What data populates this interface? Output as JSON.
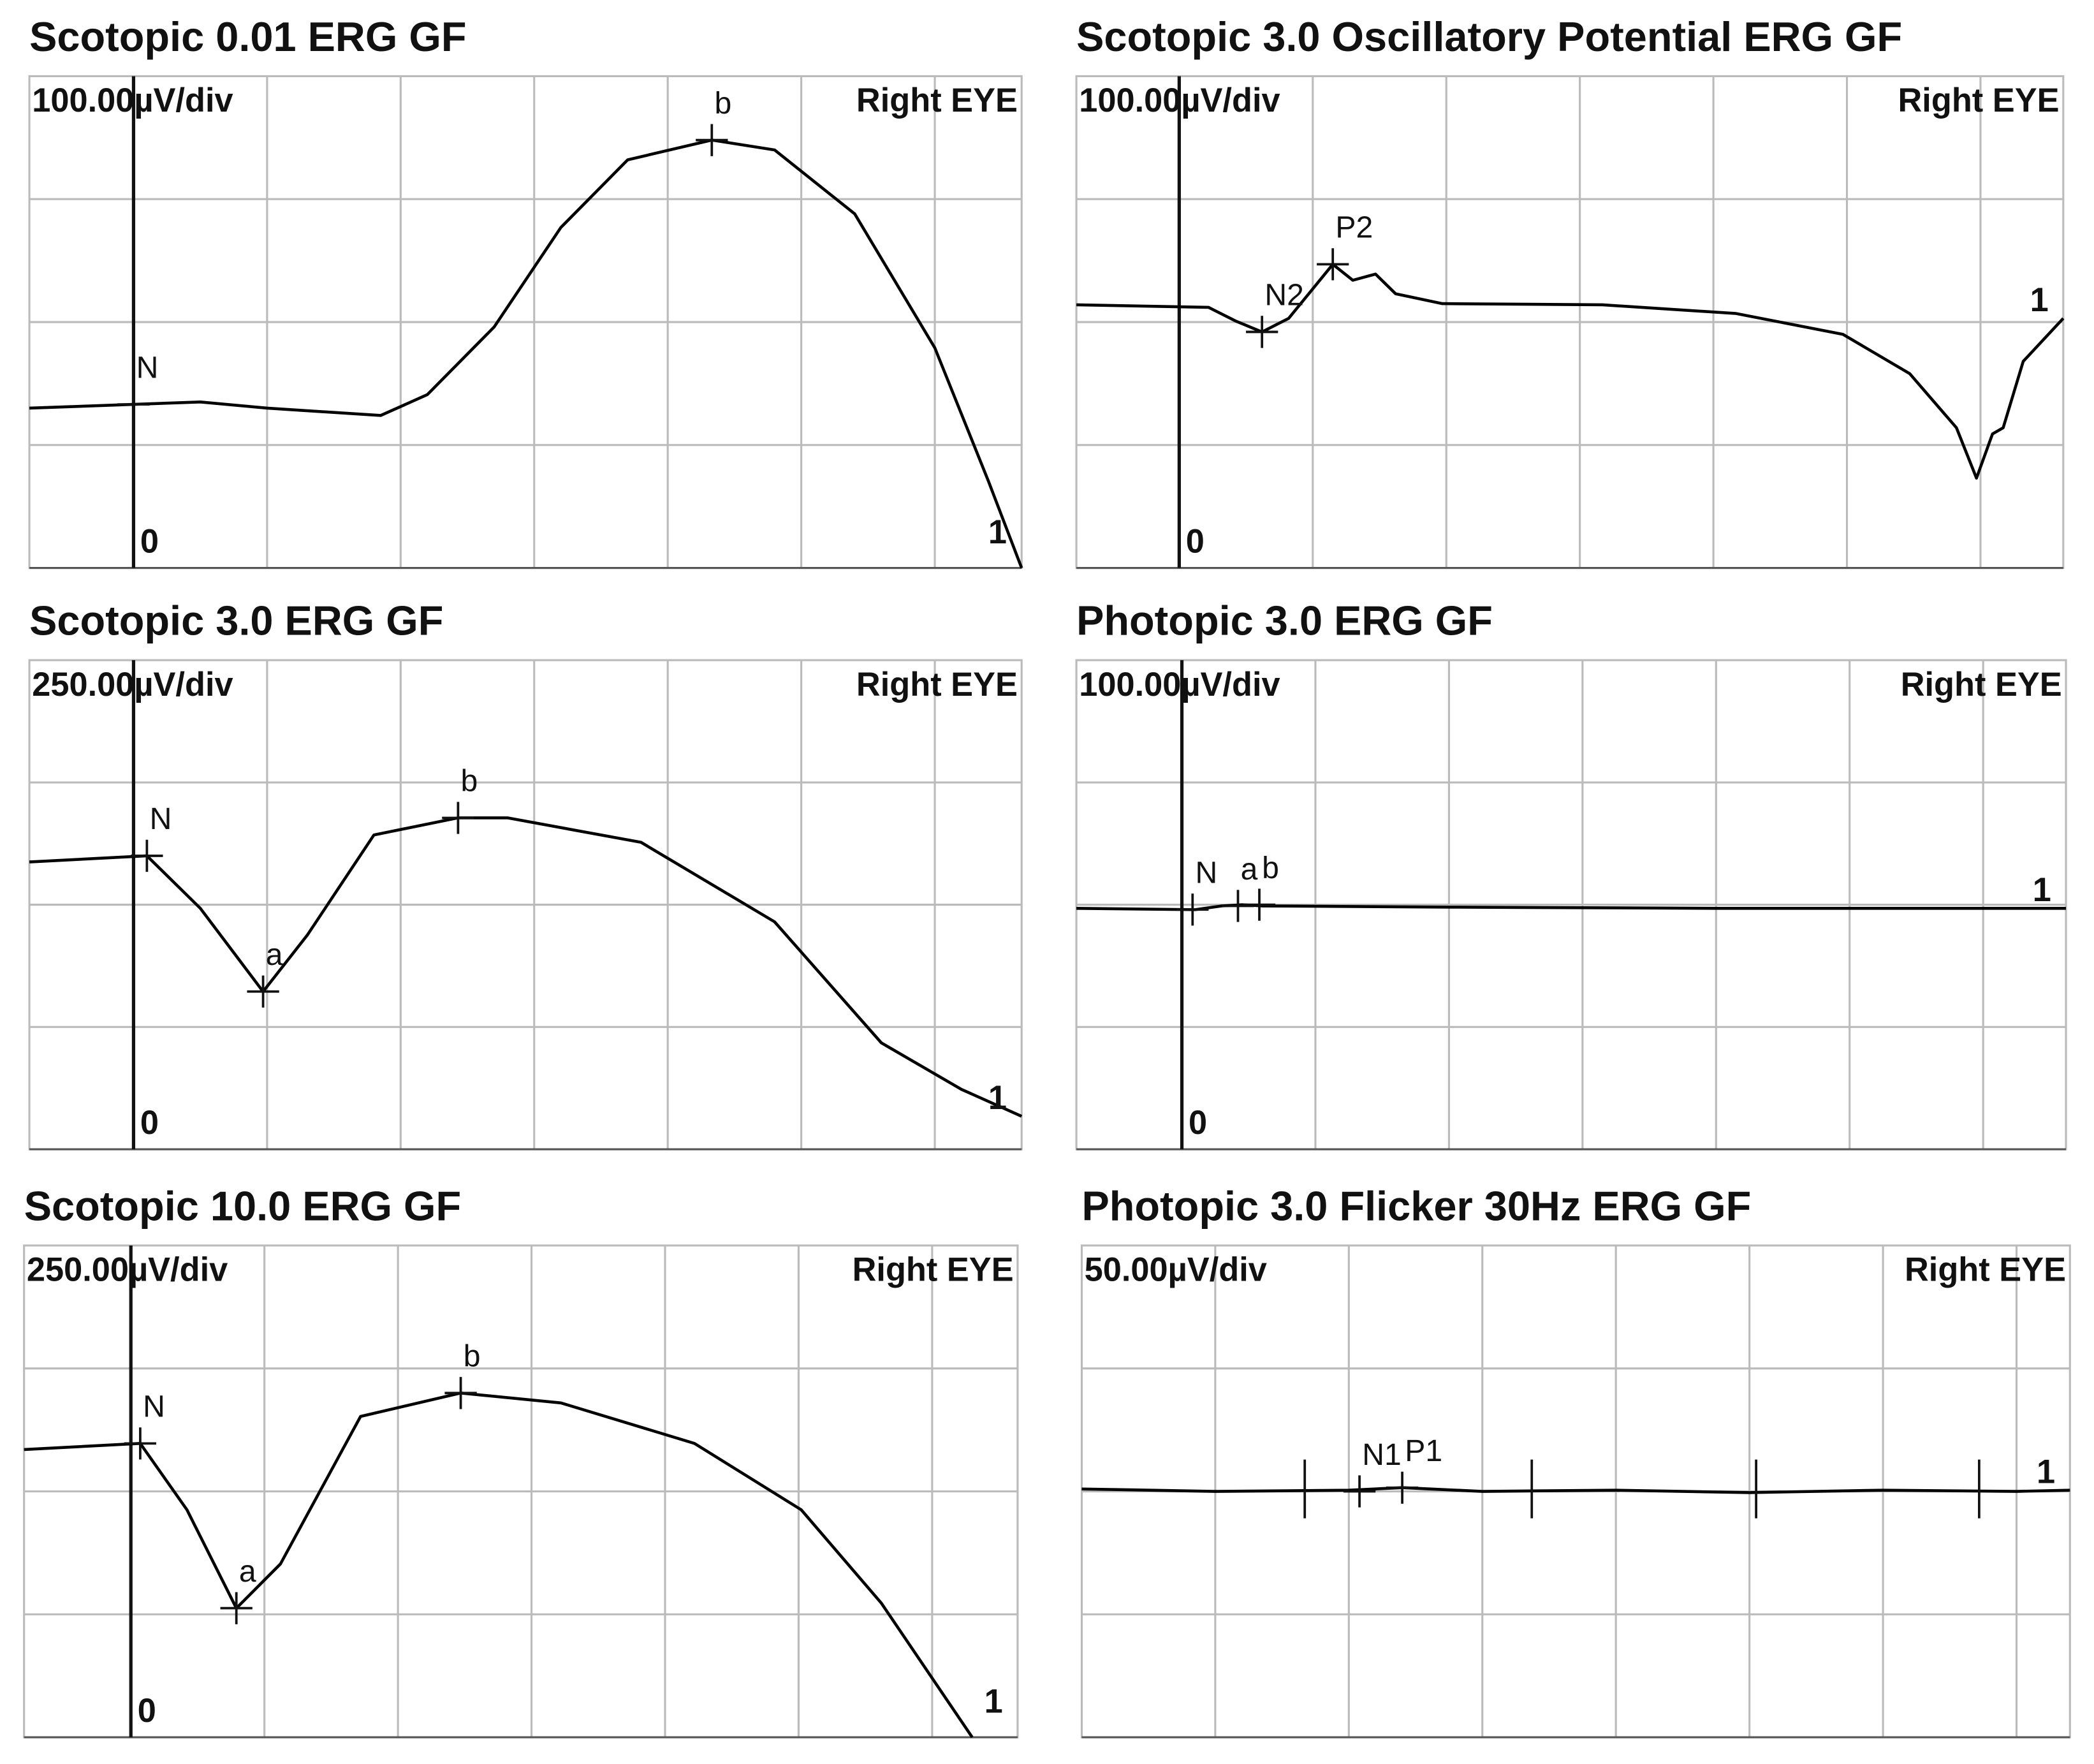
{
  "chart_data": [
    {
      "type": "line",
      "title": "Scotopic 0.01 ERG GF",
      "scale_label": "100.00µV/div",
      "eye_label": "Right EYE",
      "start_label": "0",
      "end_label": "1",
      "color": "#000000",
      "xlim": [
        -0.78,
        6.65
      ],
      "ylim": [
        0,
        4
      ],
      "xticks": [
        0,
        1,
        2,
        3,
        4,
        5,
        6
      ],
      "yticks": [
        1,
        2,
        3
      ],
      "grid": true,
      "x": [
        -0.78,
        0,
        0.5,
        1,
        1.85,
        2.2,
        2.7,
        3.2,
        3.7,
        4.33,
        4.8,
        5.4,
        6,
        6.4,
        6.65
      ],
      "values": [
        1.3,
        1.33,
        1.35,
        1.3,
        1.24,
        1.41,
        1.96,
        2.77,
        3.32,
        3.48,
        3.4,
        2.88,
        1.79,
        0.71,
        0
      ],
      "markers": [
        {
          "label": "N",
          "x": 0,
          "y": 1.33
        },
        {
          "label": "b",
          "x": 4.33,
          "y": 3.48
        }
      ]
    },
    {
      "type": "line",
      "title": "Scotopic 3.0 Oscillatory Potential ERG GF",
      "scale_label": "100.00µV/div",
      "eye_label": "Right EYE",
      "start_label": "0",
      "end_label": "1",
      "color": "#000000",
      "xlim": [
        -0.77,
        6.62
      ],
      "ylim": [
        0,
        4
      ],
      "xticks": [
        0,
        1,
        2,
        3,
        4,
        5,
        6
      ],
      "yticks": [
        1,
        2,
        3
      ],
      "grid": true,
      "x": [
        -0.77,
        0.22,
        0.42,
        0.62,
        0.82,
        1.15,
        1.3,
        1.47,
        1.62,
        1.97,
        3.17,
        4.17,
        4.97,
        5.47,
        5.82,
        5.97,
        6.09,
        6.17,
        6.32,
        6.62
      ],
      "values": [
        2.14,
        2.12,
        2.01,
        1.92,
        2.03,
        2.47,
        2.34,
        2.39,
        2.23,
        2.15,
        2.14,
        2.07,
        1.9,
        1.58,
        1.14,
        0.73,
        1.09,
        1.14,
        1.68,
        2.03
      ],
      "markers": [
        {
          "label": "N2",
          "x": 0.62,
          "y": 1.92
        },
        {
          "label": "P2",
          "x": 1.15,
          "y": 2.47
        }
      ]
    },
    {
      "type": "line",
      "title": "Scotopic 3.0 ERG GF",
      "scale_label": "250.00µV/div",
      "eye_label": "Right EYE",
      "start_label": "0",
      "end_label": "1",
      "color": "#000000",
      "xlim": [
        -0.78,
        6.65
      ],
      "ylim": [
        0,
        4
      ],
      "xticks": [
        0,
        1,
        2,
        3,
        4,
        5,
        6
      ],
      "yticks": [
        1,
        2,
        3
      ],
      "grid": true,
      "x": [
        -0.78,
        0.1,
        0.5,
        0.97,
        1.3,
        1.8,
        2.43,
        2.8,
        3.8,
        4.8,
        5.6,
        6.2,
        6.65
      ],
      "values": [
        2.35,
        2.4,
        1.97,
        1.29,
        1.75,
        2.57,
        2.71,
        2.71,
        2.51,
        1.86,
        0.87,
        0.49,
        0.27
      ],
      "markers": [
        {
          "label": "N",
          "x": 0.1,
          "y": 2.4
        },
        {
          "label": "a",
          "x": 0.97,
          "y": 1.29
        },
        {
          "label": "b",
          "x": 2.43,
          "y": 2.71
        }
      ]
    },
    {
      "type": "line",
      "title": "Photopic 3.0 ERG GF",
      "scale_label": "100.00µV/div",
      "eye_label": "Right EYE",
      "start_label": "0",
      "end_label": "1",
      "color": "#000000",
      "xlim": [
        -0.79,
        6.62
      ],
      "ylim": [
        0,
        4
      ],
      "xticks": [
        0,
        1,
        2,
        3,
        4,
        5,
        6
      ],
      "yticks": [
        1,
        2,
        3
      ],
      "grid": true,
      "x": [
        -0.79,
        0.1,
        0.3,
        0.45,
        0.6,
        2,
        4,
        6.62
      ],
      "values": [
        1.97,
        1.96,
        1.99,
        2.0,
        1.99,
        1.98,
        1.97,
        1.97
      ],
      "markers": [
        {
          "label": "N",
          "x": 0.08,
          "y": 1.96
        },
        {
          "label": "a",
          "x": 0.42,
          "y": 1.99
        },
        {
          "label": "b",
          "x": 0.58,
          "y": 2.0
        }
      ]
    },
    {
      "type": "line",
      "title": "Scotopic 10.0 ERG GF",
      "scale_label": "250.00µV/div",
      "eye_label": "Right EYE",
      "start_label": "0",
      "end_label": "1",
      "color": "#000000",
      "xlim": [
        -0.8,
        6.64
      ],
      "ylim": [
        0,
        4
      ],
      "xticks": [
        0,
        1,
        2,
        3,
        4,
        5,
        6
      ],
      "yticks": [
        1,
        2,
        3
      ],
      "grid": true,
      "x": [
        -0.8,
        0.07,
        0.42,
        0.79,
        1.12,
        1.72,
        2.47,
        3.22,
        4.22,
        5.02,
        5.62,
        6.3
      ],
      "values": [
        2.34,
        2.39,
        1.85,
        1.05,
        1.41,
        2.61,
        2.8,
        2.72,
        2.39,
        1.85,
        1.09,
        0
      ],
      "markers": [
        {
          "label": "N",
          "x": 0.07,
          "y": 2.39
        },
        {
          "label": "a",
          "x": 0.79,
          "y": 1.05
        },
        {
          "label": "b",
          "x": 2.47,
          "y": 2.8
        }
      ]
    },
    {
      "type": "line",
      "title": "Photopic 3.0 Flicker 30Hz  ERG GF",
      "scale_label": "50.00µV/div",
      "eye_label": "Right EYE",
      "end_label": "1",
      "color": "#000000",
      "xlim": [
        0,
        7.4
      ],
      "ylim": [
        0,
        4
      ],
      "xticks": [
        1,
        2,
        3,
        4,
        5,
        6,
        7
      ],
      "yticks": [
        1,
        2,
        3
      ],
      "grid": true,
      "x": [
        0,
        1,
        2,
        2.4,
        3,
        4,
        5,
        6,
        7,
        7.4
      ],
      "values": [
        2.02,
        2.0,
        2.01,
        2.03,
        2.0,
        2.01,
        1.99,
        2.01,
        2.0,
        2.01
      ],
      "markers": [
        {
          "label": "N1",
          "x": 2.08,
          "y": 2.0
        },
        {
          "label": "P1",
          "x": 2.4,
          "y": 2.03
        }
      ],
      "peaks": [
        1.67,
        3.37,
        5.05,
        6.72
      ]
    }
  ]
}
